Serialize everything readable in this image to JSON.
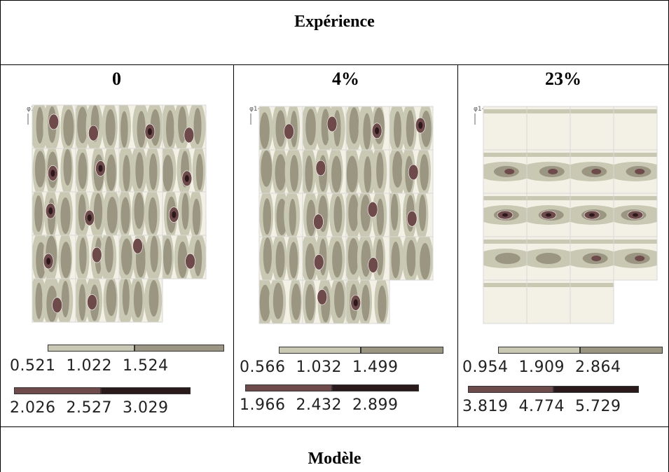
{
  "header": {
    "title": "Expérience"
  },
  "footer": {
    "title": "Modèle"
  },
  "columns": [
    {
      "label": "0",
      "axis_label": "φ1→",
      "legend_row1": [
        "0.521",
        "1.022",
        "1.524"
      ],
      "legend_row2": [
        "2.026",
        "2.527",
        "3.029"
      ]
    },
    {
      "label": "4%",
      "axis_label": "φ1→",
      "legend_row1": [
        "0.566",
        "1.032",
        "1.499"
      ],
      "legend_row2": [
        "1.966",
        "2.432",
        "2.899"
      ]
    },
    {
      "label": "23%",
      "axis_label": "φ1→",
      "legend_row1": [
        "0.954",
        "1.909",
        "2.864"
      ],
      "legend_row2": [
        "3.819",
        "4.774",
        "5.729"
      ]
    }
  ],
  "colors": {
    "level1": "#c9c8b2",
    "level2": "#9b9682",
    "level3": "#6e4a4b",
    "level4": "#2a1a1c",
    "background_cream": "#f3f1e6"
  }
}
